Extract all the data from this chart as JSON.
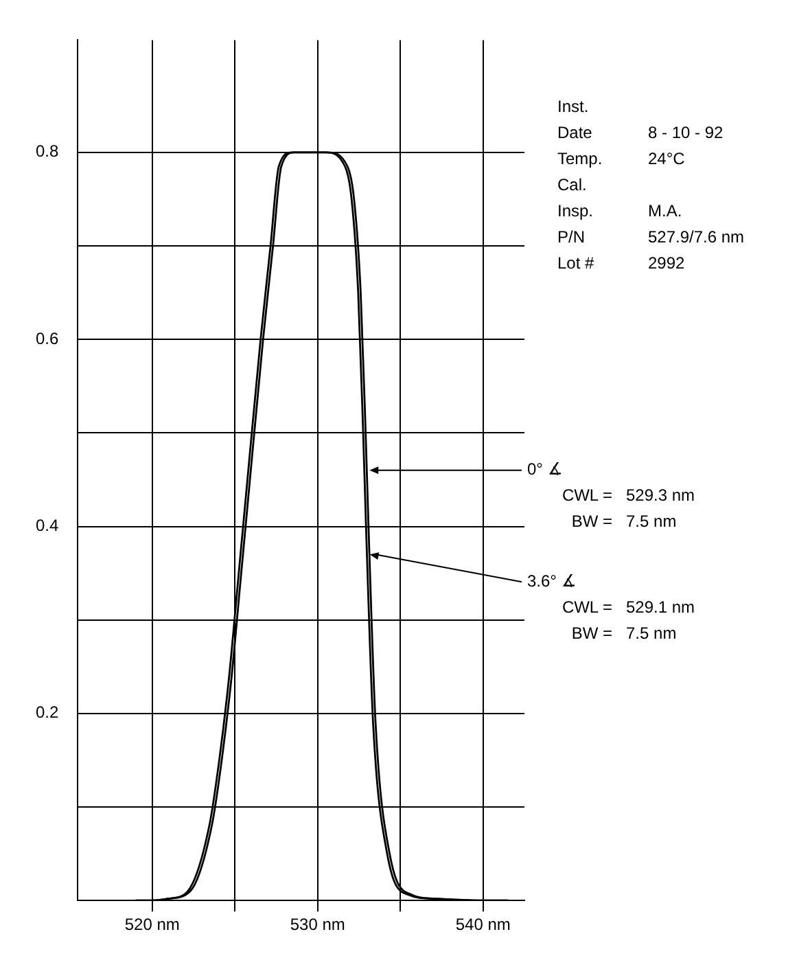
{
  "chart_data": {
    "type": "line",
    "x": [
      519,
      520,
      521,
      522.3,
      523.6,
      524.2,
      524.8,
      525.3,
      525.8,
      526.7,
      527.3,
      527.8,
      528.6,
      530.6,
      531.8,
      532.2,
      532.6,
      532.9,
      533.1,
      533.5,
      534.35,
      535.7,
      537,
      540,
      541.5
    ],
    "series": [
      {
        "name": "0° ∡",
        "color": "#000000",
        "values": [
          0,
          0,
          0.002,
          0.01,
          0.08,
          0.15,
          0.24,
          0.335,
          0.43,
          0.6,
          0.7,
          0.785,
          0.8,
          0.8,
          0.785,
          0.75,
          0.65,
          0.5,
          0.385,
          0.19,
          0.05,
          0.006,
          0.002,
          0,
          0
        ]
      },
      {
        "name": "3.6° ∡",
        "color": "#000000",
        "x": [
          519,
          520,
          521,
          522.15,
          523.45,
          524.05,
          524.65,
          525.15,
          525.65,
          526.55,
          527.15,
          527.65,
          528.45,
          530.45,
          531.65,
          532.05,
          532.45,
          532.75,
          532.95,
          533.35,
          534.2,
          535.5,
          537,
          540,
          541.5
        ],
        "values": [
          0,
          0,
          0.002,
          0.01,
          0.08,
          0.15,
          0.24,
          0.335,
          0.43,
          0.6,
          0.7,
          0.785,
          0.8,
          0.8,
          0.785,
          0.75,
          0.65,
          0.5,
          0.385,
          0.19,
          0.05,
          0.006,
          0.002,
          0,
          0
        ]
      }
    ],
    "xlim": [
      515.5,
      542.5
    ],
    "xticks": [
      {
        "value": 520,
        "label": "520 nm"
      },
      {
        "value": 525,
        "label": null
      },
      {
        "value": 530,
        "label": "530 nm"
      },
      {
        "value": 535,
        "label": null
      },
      {
        "value": 540,
        "label": "540 nm"
      }
    ],
    "ylim": [
      0,
      0.92
    ],
    "yticks": [
      {
        "value": 0,
        "label": null
      },
      {
        "value": 0.1,
        "label": null
      },
      0.2,
      {
        "value": 0.3,
        "label": null
      },
      0.4,
      {
        "value": 0.5,
        "label": null
      },
      0.6,
      {
        "value": 0.7,
        "label": null
      },
      0.8
    ],
    "grid": true,
    "legend": false,
    "marker": "none",
    "line_style": "solid",
    "annotations": [
      "Inst.",
      "Date\t8 - 10 - 92",
      "Temp.\t24°C",
      "Cal.",
      "Insp.\tM.A.",
      "P/N\t527.9/7.6 nm",
      "Lot #\t2992",
      "CWL =\t529.3 nm",
      "BW =\t7.5 nm",
      "CWL =\t529.1 nm",
      "BW =\t7.5 nm"
    ]
  }
}
